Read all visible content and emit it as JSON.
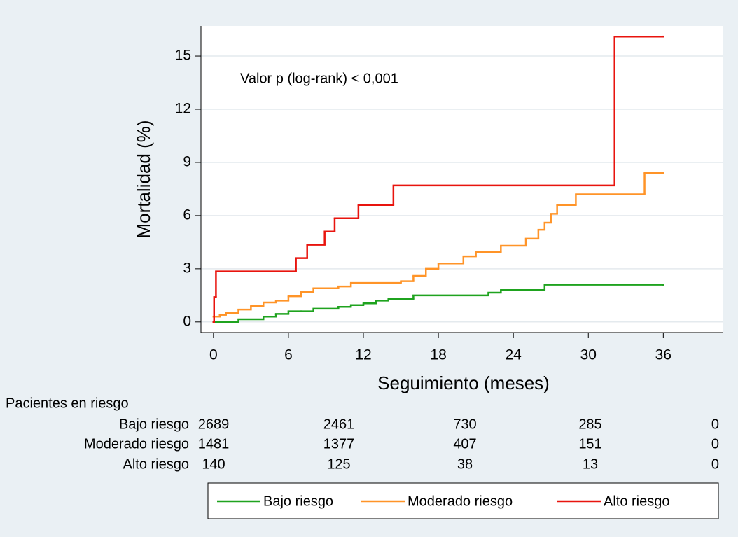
{
  "chart_data": {
    "type": "step",
    "x_label": "Seguimiento (meses)",
    "y_label": "Mortalidad (%)",
    "annotation": "Valor p (log-rank) < 0,001",
    "xlim": [
      -1,
      40.8
    ],
    "ylim": [
      -0.6,
      16.7
    ],
    "xticks": [
      0,
      6,
      12,
      18,
      24,
      30,
      36
    ],
    "yticks": [
      0,
      3,
      6,
      9,
      12,
      15
    ],
    "grid": true,
    "legend": "bottom",
    "series": [
      {
        "name": "Bajo riesgo",
        "color": "#1fa31f",
        "x": [
          0,
          2,
          4,
          5,
          6,
          7,
          8,
          10,
          11,
          12,
          13,
          14,
          16,
          22,
          23,
          26.5,
          36
        ],
        "values": [
          0,
          0.15,
          0.3,
          0.45,
          0.6,
          0.6,
          0.75,
          0.85,
          0.95,
          1.05,
          1.2,
          1.3,
          1.5,
          1.65,
          1.8,
          2.1,
          2.1
        ]
      },
      {
        "name": "Moderado riesgo",
        "color": "#ff9428",
        "x": [
          0,
          0.5,
          1,
          2,
          3,
          4,
          5,
          6,
          7,
          8,
          10,
          11,
          15,
          16,
          17,
          18,
          20,
          21,
          23,
          25,
          26,
          26.5,
          27,
          27.5,
          29,
          34.5,
          36
        ],
        "values": [
          0.3,
          0.4,
          0.5,
          0.7,
          0.9,
          1.1,
          1.2,
          1.45,
          1.7,
          1.9,
          2.0,
          2.2,
          2.3,
          2.6,
          3.0,
          3.3,
          3.7,
          3.95,
          4.3,
          4.7,
          5.2,
          5.6,
          6.1,
          6.6,
          7.2,
          8.4,
          8.4
        ]
      },
      {
        "name": "Alto riesgo",
        "color": "#e8140e",
        "x": [
          0,
          0.05,
          0.2,
          6.6,
          7.5,
          8.9,
          9.7,
          11.6,
          14.4,
          32.1,
          36
        ],
        "values": [
          0,
          1.4,
          2.85,
          3.6,
          4.35,
          5.1,
          5.85,
          6.6,
          7.7,
          16.1,
          16.1
        ]
      }
    ],
    "risk_table": {
      "title": "Pacientes en riesgo",
      "rows": [
        {
          "name": "Bajo riesgo",
          "counts": [
            2689,
            2461,
            730,
            285,
            0
          ]
        },
        {
          "name": "Moderado riesgo",
          "counts": [
            1481,
            1377,
            407,
            151,
            0
          ]
        },
        {
          "name": "Alto riesgo",
          "counts": [
            140,
            125,
            38,
            13,
            0
          ]
        }
      ]
    }
  }
}
